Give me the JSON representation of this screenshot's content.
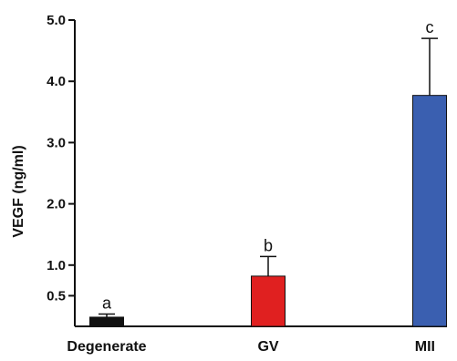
{
  "chart_data": {
    "type": "bar",
    "title": "",
    "xlabel": "",
    "ylabel": "VEGF (ng/ml)",
    "ylim": [
      0,
      5.0
    ],
    "y_ticks": [
      0.5,
      1.0,
      2.0,
      3.0,
      4.0,
      5.0
    ],
    "y_tick_labels": [
      "0.5",
      "1.0",
      "2.0",
      "3.0",
      "4.0",
      "5.0"
    ],
    "categories": [
      "Degenerate",
      "GV",
      "MII"
    ],
    "values": [
      0.15,
      0.82,
      3.77
    ],
    "errors": [
      0.05,
      0.32,
      0.93
    ],
    "significance": [
      "a",
      "b",
      "c"
    ],
    "colors": [
      "#111111",
      "#e02020",
      "#3a5fb0"
    ],
    "grid": false,
    "legend": "none"
  }
}
